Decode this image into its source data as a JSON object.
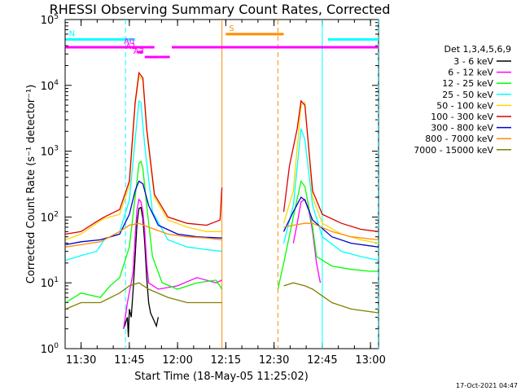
{
  "chart_data": {
    "type": "line",
    "title": "RHESSI Observing Summary Count Rates, Corrected",
    "xlabel": "Start Time (18-May-05 11:25:02)",
    "ylabel": "Corrected Count Rate (s⁻¹ detector⁻¹)",
    "y_scale": "log",
    "ylim": [
      1,
      100000
    ],
    "xlim": [
      "11:25:02",
      "13:02:30"
    ],
    "x_ticks": [
      "11:30",
      "11:45",
      "12:00",
      "12:15",
      "12:30",
      "12:45",
      "13:00"
    ],
    "y_ticks": [
      {
        "value": 1,
        "exp": "0"
      },
      {
        "value": 10,
        "exp": "1"
      },
      {
        "value": 100,
        "exp": "2"
      },
      {
        "value": 1000,
        "exp": "3"
      },
      {
        "value": 10000,
        "exp": "4"
      },
      {
        "value": 100000,
        "exp": "5"
      }
    ],
    "legend_title": "Det 1,3,4,5,6,9",
    "legend_position": "right",
    "series": [
      {
        "name": "3 - 6 keV",
        "color": "#000000",
        "values": [
          [
            11.72,
            2
          ],
          [
            11.74,
            3
          ],
          [
            11.745,
            1.5
          ],
          [
            11.75,
            4
          ],
          [
            11.76,
            3
          ],
          [
            11.77,
            8
          ],
          [
            11.78,
            25
          ],
          [
            11.79,
            80
          ],
          [
            11.8,
            135
          ],
          [
            11.81,
            140
          ],
          [
            11.82,
            95
          ],
          [
            11.83,
            40
          ],
          [
            11.84,
            12
          ],
          [
            11.85,
            5
          ],
          [
            11.86,
            3.5
          ],
          [
            11.87,
            3
          ],
          [
            11.89,
            2.2
          ],
          [
            11.9,
            3
          ]
        ]
      },
      {
        "name": "6 - 12 keV",
        "color": "#ff00ff",
        "values": [
          [
            11.72,
            2
          ],
          [
            11.74,
            5
          ],
          [
            11.76,
            10
          ],
          [
            11.77,
            15
          ],
          [
            11.78,
            50
          ],
          [
            11.79,
            130
          ],
          [
            11.8,
            185
          ],
          [
            11.81,
            170
          ],
          [
            11.82,
            120
          ],
          [
            11.83,
            60
          ],
          [
            11.84,
            20
          ],
          [
            11.85,
            10
          ],
          [
            11.9,
            8
          ],
          [
            12.0,
            9
          ],
          [
            12.1,
            12
          ],
          [
            12.2,
            10
          ],
          [
            12.23,
            11
          ],
          [
            12.6,
            40
          ],
          [
            12.62,
            80
          ],
          [
            12.64,
            170
          ],
          [
            12.66,
            185
          ],
          [
            12.68,
            130
          ],
          [
            12.7,
            60
          ],
          [
            12.72,
            20
          ],
          [
            12.74,
            10
          ]
        ]
      },
      {
        "name": "12 - 25 keV",
        "color": "#00ff00",
        "values": [
          [
            11.42,
            5
          ],
          [
            11.5,
            7
          ],
          [
            11.6,
            6
          ],
          [
            11.65,
            9
          ],
          [
            11.7,
            12
          ],
          [
            11.75,
            35
          ],
          [
            11.78,
            200
          ],
          [
            11.8,
            650
          ],
          [
            11.81,
            700
          ],
          [
            11.82,
            550
          ],
          [
            11.84,
            150
          ],
          [
            11.87,
            25
          ],
          [
            11.92,
            10
          ],
          [
            12.0,
            8
          ],
          [
            12.1,
            10
          ],
          [
            12.2,
            11
          ],
          [
            12.23,
            8
          ],
          [
            12.52,
            8
          ],
          [
            12.55,
            20
          ],
          [
            12.6,
            100
          ],
          [
            12.64,
            350
          ],
          [
            12.66,
            290
          ],
          [
            12.7,
            70
          ],
          [
            12.72,
            25
          ],
          [
            12.8,
            18
          ],
          [
            12.9,
            16
          ],
          [
            13.0,
            15
          ],
          [
            13.04,
            15
          ]
        ]
      },
      {
        "name": "25 - 50 keV",
        "color": "#00ffff",
        "values": [
          [
            11.42,
            22
          ],
          [
            11.5,
            26
          ],
          [
            11.58,
            30
          ],
          [
            11.62,
            45
          ],
          [
            11.7,
            60
          ],
          [
            11.75,
            180
          ],
          [
            11.78,
            1500
          ],
          [
            11.8,
            5800
          ],
          [
            11.81,
            5500
          ],
          [
            11.83,
            1200
          ],
          [
            11.87,
            120
          ],
          [
            11.95,
            45
          ],
          [
            12.05,
            35
          ],
          [
            12.15,
            32
          ],
          [
            12.23,
            30
          ],
          [
            12.55,
            40
          ],
          [
            12.6,
            150
          ],
          [
            12.64,
            2200
          ],
          [
            12.66,
            1500
          ],
          [
            12.7,
            150
          ],
          [
            12.75,
            50
          ],
          [
            12.85,
            30
          ],
          [
            12.95,
            25
          ],
          [
            13.04,
            22
          ]
        ]
      },
      {
        "name": "50 - 100 keV",
        "color": "#ffd700",
        "values": [
          [
            11.42,
            45
          ],
          [
            11.5,
            55
          ],
          [
            11.58,
            80
          ],
          [
            11.62,
            95
          ],
          [
            11.7,
            110
          ],
          [
            11.75,
            300
          ],
          [
            11.78,
            5000
          ],
          [
            11.8,
            14000
          ],
          [
            11.82,
            12000
          ],
          [
            11.84,
            2000
          ],
          [
            11.88,
            200
          ],
          [
            11.95,
            90
          ],
          [
            12.05,
            70
          ],
          [
            12.15,
            60
          ],
          [
            12.23,
            60
          ],
          [
            12.55,
            80
          ],
          [
            12.6,
            250
          ],
          [
            12.64,
            5000
          ],
          [
            12.66,
            5500
          ],
          [
            12.7,
            200
          ],
          [
            12.75,
            80
          ],
          [
            12.85,
            55
          ],
          [
            12.95,
            45
          ],
          [
            13.04,
            40
          ]
        ]
      },
      {
        "name": "100 - 300 keV",
        "color": "#dc0000",
        "values": [
          [
            11.42,
            55
          ],
          [
            11.5,
            60
          ],
          [
            11.58,
            85
          ],
          [
            11.62,
            100
          ],
          [
            11.7,
            130
          ],
          [
            11.75,
            350
          ],
          [
            11.78,
            5500
          ],
          [
            11.8,
            15500
          ],
          [
            11.82,
            13000
          ],
          [
            11.84,
            2200
          ],
          [
            11.88,
            220
          ],
          [
            11.95,
            100
          ],
          [
            12.05,
            80
          ],
          [
            12.15,
            75
          ],
          [
            12.22,
            90
          ],
          [
            12.23,
            280
          ],
          [
            12.55,
            120
          ],
          [
            12.58,
            600
          ],
          [
            12.62,
            2200
          ],
          [
            12.64,
            5800
          ],
          [
            12.66,
            5000
          ],
          [
            12.7,
            250
          ],
          [
            12.75,
            110
          ],
          [
            12.85,
            80
          ],
          [
            12.95,
            65
          ],
          [
            13.04,
            60
          ]
        ]
      },
      {
        "name": "300 - 800 keV",
        "color": "#0000cc",
        "values": [
          [
            11.42,
            38
          ],
          [
            11.5,
            42
          ],
          [
            11.6,
            45
          ],
          [
            11.7,
            55
          ],
          [
            11.75,
            110
          ],
          [
            11.78,
            250
          ],
          [
            11.8,
            350
          ],
          [
            11.82,
            320
          ],
          [
            11.85,
            150
          ],
          [
            11.9,
            75
          ],
          [
            12.0,
            55
          ],
          [
            12.1,
            50
          ],
          [
            12.23,
            48
          ],
          [
            12.55,
            60
          ],
          [
            12.6,
            120
          ],
          [
            12.64,
            200
          ],
          [
            12.66,
            180
          ],
          [
            12.7,
            90
          ],
          [
            12.8,
            50
          ],
          [
            12.9,
            40
          ],
          [
            13.04,
            35
          ]
        ]
      },
      {
        "name": "800 - 7000 keV",
        "color": "#ff8c00",
        "values": [
          [
            11.42,
            35
          ],
          [
            11.5,
            38
          ],
          [
            11.6,
            42
          ],
          [
            11.7,
            60
          ],
          [
            11.75,
            75
          ],
          [
            11.8,
            80
          ],
          [
            11.85,
            70
          ],
          [
            11.95,
            55
          ],
          [
            12.05,
            50
          ],
          [
            12.15,
            48
          ],
          [
            12.23,
            45
          ],
          [
            12.55,
            70
          ],
          [
            12.6,
            75
          ],
          [
            12.66,
            80
          ],
          [
            12.7,
            80
          ],
          [
            12.8,
            60
          ],
          [
            12.9,
            50
          ],
          [
            13.04,
            45
          ]
        ]
      },
      {
        "name": "7000 - 15000 keV",
        "color": "#808000",
        "values": [
          [
            11.42,
            4
          ],
          [
            11.5,
            5
          ],
          [
            11.6,
            5
          ],
          [
            11.7,
            7
          ],
          [
            11.75,
            9
          ],
          [
            11.8,
            10
          ],
          [
            11.85,
            8
          ],
          [
            11.95,
            6
          ],
          [
            12.05,
            5
          ],
          [
            12.15,
            5
          ],
          [
            12.23,
            5
          ],
          [
            12.55,
            9
          ],
          [
            12.6,
            10
          ],
          [
            12.66,
            9
          ],
          [
            12.7,
            8
          ],
          [
            12.8,
            5
          ],
          [
            12.9,
            4
          ],
          [
            13.04,
            3.5
          ]
        ]
      }
    ],
    "flag_bars": [
      {
        "label": "N",
        "color": "#00ffff",
        "level": 50000,
        "segments": [
          [
            11.42,
            11.78
          ],
          [
            12.78,
            13.04
          ]
        ]
      },
      {
        "label": "S",
        "color": "#ff8c00",
        "level": 60000,
        "segments": [
          [
            12.25,
            12.55
          ]
        ]
      },
      {
        "label": "",
        "color": "#ff00ff",
        "level": 38000,
        "segments": [
          [
            11.42,
            11.78
          ]
        ]
      },
      {
        "label": "A0",
        "color": "#ff00ff",
        "level": 38000,
        "segments": [
          [
            11.78,
            11.88
          ],
          [
            11.97,
            13.04
          ]
        ]
      },
      {
        "label": "A1",
        "color": "#ff00ff",
        "level": 32000,
        "segments": [
          [
            11.79,
            11.82
          ]
        ]
      },
      {
        "label": "A3",
        "color": "#ff00ff",
        "level": 27000,
        "segments": [
          [
            11.83,
            11.91
          ],
          [
            11.91,
            11.96
          ]
        ]
      }
    ],
    "vlines": [
      {
        "time": 11.73,
        "color": "#00ffff",
        "dash": true
      },
      {
        "time": 12.23,
        "color": "#ff8c00",
        "dash": false
      },
      {
        "time": 12.52,
        "color": "#ff8c00",
        "dash": true
      },
      {
        "time": 12.75,
        "color": "#00ffff",
        "dash": false
      },
      {
        "time": 13.04,
        "color": "#00ffff",
        "dash": true
      }
    ],
    "grid": false
  },
  "timestamp": "17-Oct-2021 04:47"
}
